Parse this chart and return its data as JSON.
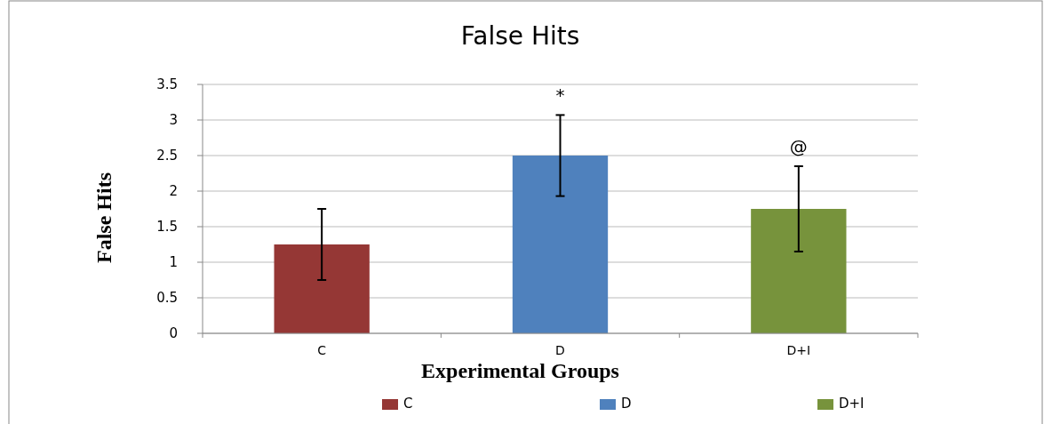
{
  "chart_data": {
    "type": "bar",
    "title": "False Hits",
    "xlabel": "Experimental  Groups",
    "ylabel": "False Hits",
    "categories": [
      "C",
      "D",
      "D+I"
    ],
    "series": [
      {
        "name": "C",
        "color": "#953735",
        "values": [
          1.25,
          null,
          null
        ],
        "errors": [
          0.5,
          null,
          null
        ]
      },
      {
        "name": "D",
        "color": "#4f81bd",
        "values": [
          null,
          2.5,
          null
        ],
        "errors": [
          null,
          0.57,
          null
        ]
      },
      {
        "name": "D+I",
        "color": "#77933c",
        "values": [
          null,
          null,
          1.75
        ],
        "errors": [
          null,
          null,
          0.6
        ]
      }
    ],
    "ylim": [
      0,
      3.5
    ],
    "yticks": [
      0,
      {
        "value": 0.5,
        "label": "0.5"
      },
      1,
      {
        "value": 1.5,
        "label": "1.5"
      },
      2,
      {
        "value": 2.5,
        "label": "2.5"
      },
      3,
      {
        "value": 3.5,
        "label": "3.5"
      }
    ],
    "grid": "y",
    "legend": "bottom",
    "annotations": [
      "*",
      "@"
    ]
  }
}
